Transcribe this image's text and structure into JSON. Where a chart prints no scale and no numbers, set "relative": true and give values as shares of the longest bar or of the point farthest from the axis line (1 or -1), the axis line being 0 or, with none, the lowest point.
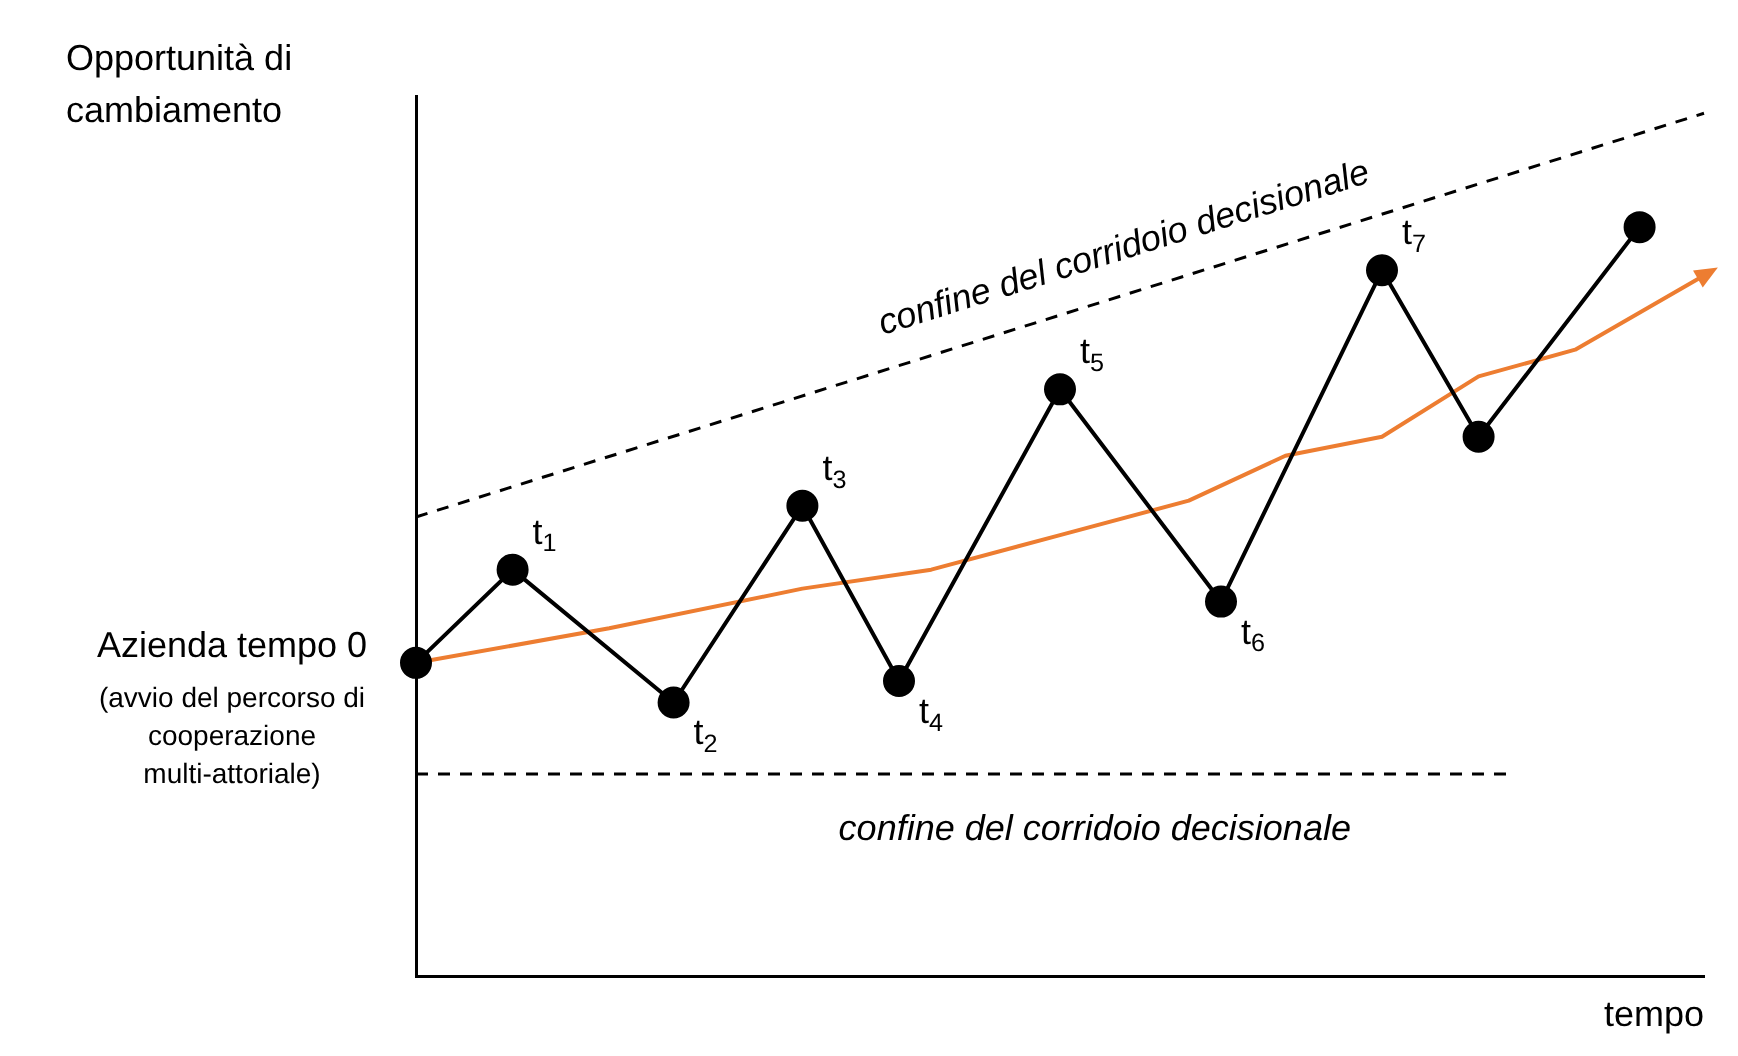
{
  "chart_data": {
    "type": "line",
    "relative": true,
    "ylabel": "Opportunità di cambiamento",
    "xlabel": "tempo",
    "tick_labels": false,
    "grid": false,
    "legend": false,
    "categories": [
      null,
      null,
      null,
      null,
      null,
      null,
      null,
      null,
      null,
      null,
      null,
      null,
      null,
      null,
      null,
      null,
      null,
      null,
      null,
      null,
      null,
      null,
      null,
      null,
      null,
      null,
      null,
      null,
      null,
      null,
      null,
      null,
      null,
      null,
      null,
      null,
      null,
      null,
      null,
      null,
      null
    ],
    "series": [
      {
        "color": "#000000",
        "marker": "circle",
        "line_style": "solid",
        "values": [
          0.363,
          null,
          null,
          0.471,
          null,
          null,
          null,
          null,
          0.317,
          null,
          null,
          null,
          0.545,
          null,
          null,
          0.342,
          null,
          null,
          null,
          null,
          0.68,
          null,
          null,
          null,
          null,
          0.434,
          null,
          null,
          null,
          null,
          0.818,
          null,
          null,
          0.625,
          null,
          null,
          null,
          null,
          0.868,
          null,
          null
        ]
      },
      {
        "color": "#ed7d31",
        "marker": "none",
        "line_style": "solid",
        "values": [
          0.363,
          null,
          null,
          null,
          null,
          null,
          0.403,
          null,
          null,
          null,
          null,
          null,
          0.449,
          null,
          null,
          null,
          0.471,
          null,
          null,
          null,
          0.511,
          null,
          null,
          null,
          0.551,
          null,
          null,
          0.603,
          null,
          null,
          0.625,
          null,
          null,
          0.695,
          null,
          null,
          0.726,
          null,
          null,
          null,
          0.812
        ]
      },
      {
        "name": "confine del corridoio decisionale",
        "color": "#000000",
        "marker": "none",
        "line_style": "dashed",
        "values": [
          0.532,
          null,
          null,
          null,
          null,
          null,
          null,
          null,
          null,
          null,
          null,
          null,
          null,
          null,
          null,
          null,
          null,
          null,
          null,
          null,
          null,
          null,
          null,
          null,
          null,
          null,
          null,
          null,
          null,
          null,
          null,
          null,
          null,
          null,
          null,
          null,
          null,
          null,
          null,
          null,
          1
        ]
      },
      {
        "name": "confine del corridoio decisionale",
        "color": "#000000",
        "marker": "none",
        "line_style": "dashed",
        "values": [
          0.234,
          null,
          null,
          null,
          null,
          null,
          null,
          null,
          null,
          null,
          null,
          null,
          null,
          null,
          null,
          null,
          null,
          null,
          null,
          null,
          null,
          null,
          null,
          null,
          null,
          null,
          null,
          null,
          null,
          null,
          null,
          null,
          null,
          null,
          0.234,
          null,
          null,
          null,
          null,
          null,
          null
        ]
      }
    ],
    "annotations": [
      "Azienda tempo 0",
      "(avvio del percorso di cooperazione multi-attoriale)",
      "t$_{1}$",
      "t$_{2}$",
      "t$_{3}$",
      "t$_{4}$",
      "t$_{5}$",
      "t$_{6}$",
      "t$_{7}$"
    ]
  }
}
